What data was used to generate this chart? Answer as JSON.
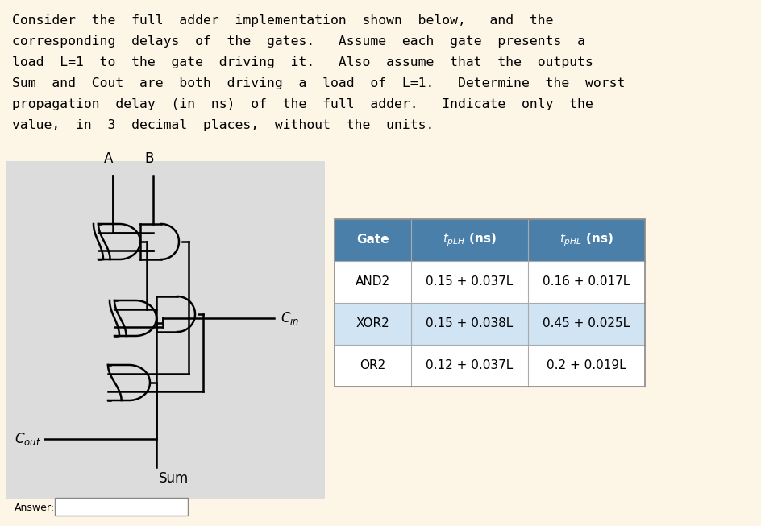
{
  "background_color": "#FDF5E6",
  "circuit_bg": "#DCDCDC",
  "text_lines": [
    "Consider  the  full  adder  implementation  shown  below,   and  the",
    "corresponding  delays  of  the  gates.   Assume  each  gate  presents  a",
    "load  L=1  to  the  gate  driving  it.   Also  assume  that  the  outputs",
    "Sum  and  Cout  are  both  driving  a  load  of  L=1.   Determine  the  worst",
    "propagation  delay  (in  ns)  of  the  full  adder.   Indicate  only  the",
    "value,  in  3  decimal  places,  without  the  units."
  ],
  "table_header_bg": "#4A7FAA",
  "table_header_color": "#FFFFFF",
  "table_row_bg": [
    "#FFFFFF",
    "#D0E4F4",
    "#FFFFFF"
  ],
  "table_rows": [
    [
      "AND2",
      "0.15 + 0.037L",
      "0.16 + 0.017L"
    ],
    [
      "XOR2",
      "0.15 + 0.038L",
      "0.45 + 0.025L"
    ],
    [
      "OR2",
      "0.12 + 0.037L",
      "0.2 + 0.019L"
    ]
  ],
  "answer_label": "Answer:"
}
